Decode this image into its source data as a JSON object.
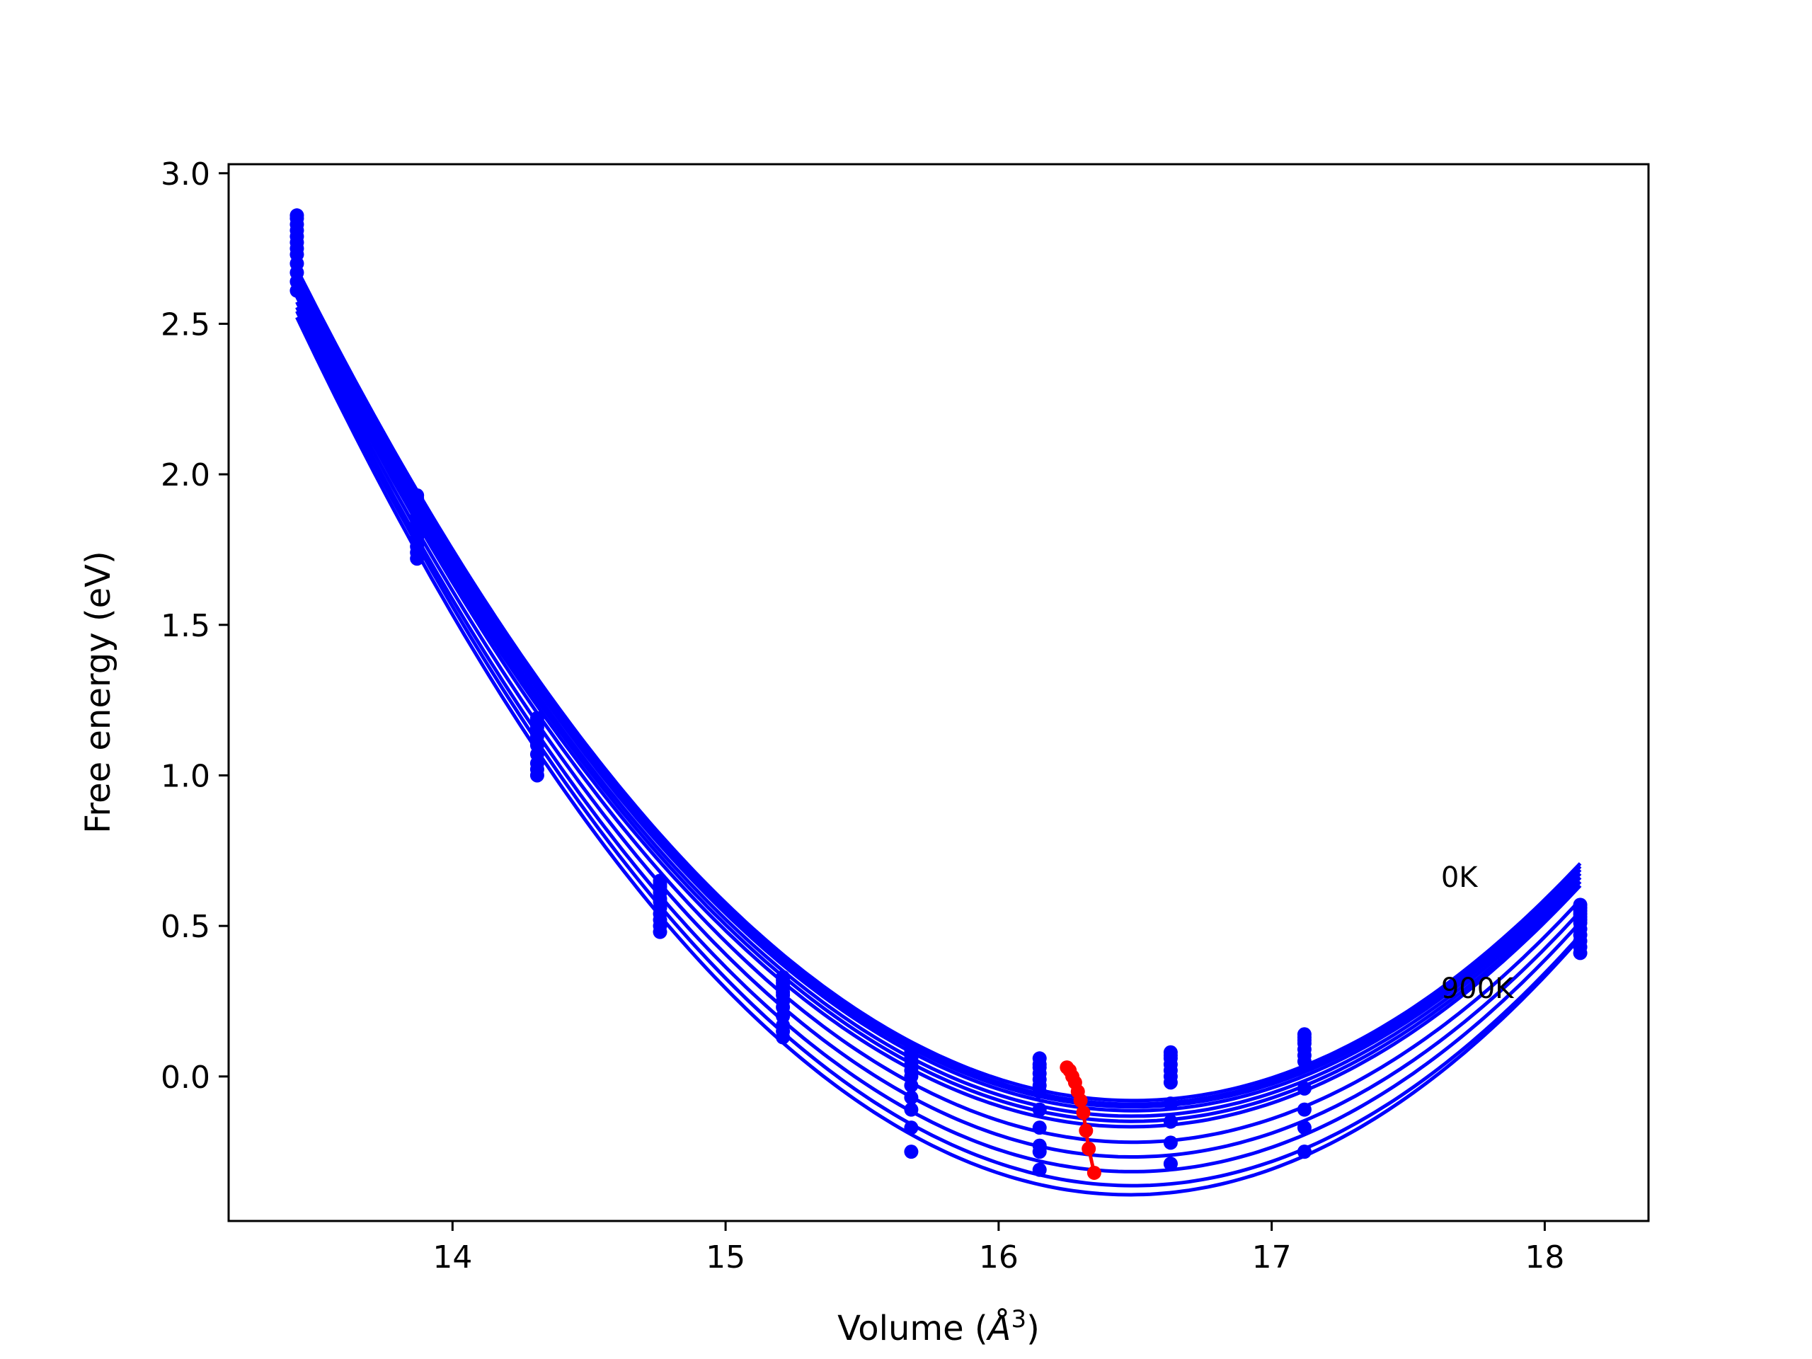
{
  "chart_data": {
    "type": "line",
    "title": "",
    "xlabel": "Volume (Å³)",
    "xlabel_parts": {
      "pre": "Volume (",
      "italic": "Å",
      "sup": "3",
      "post": ")"
    },
    "ylabel": "Free energy (eV)",
    "xlim": [
      13.18,
      18.38
    ],
    "ylim": [
      -0.48,
      3.03
    ],
    "xticks": [
      14,
      15,
      16,
      17,
      18
    ],
    "xtick_labels": [
      "14",
      "15",
      "16",
      "17",
      "18"
    ],
    "yticks": [
      0.0,
      0.5,
      1.0,
      1.5,
      2.0,
      2.5,
      3.0
    ],
    "ytick_labels": [
      "0.0",
      "0.5",
      "1.0",
      "1.5",
      "2.0",
      "2.5",
      "3.0"
    ],
    "grid": false,
    "legend": "none",
    "colors": {
      "curves": "#0000ff",
      "minima": "#ff0000",
      "axes": "#000000"
    },
    "annotations": [
      {
        "text": "0K",
        "x": 17.62,
        "y": 0.63
      },
      {
        "text": "900K",
        "x": 17.62,
        "y": 0.26
      }
    ],
    "volumes": [
      13.43,
      13.87,
      14.31,
      14.76,
      15.21,
      15.68,
      16.15,
      16.63,
      17.12,
      18.13
    ],
    "series": [
      {
        "values": [
          2.86,
          1.93,
          1.19,
          0.65,
          0.33,
          0.09,
          0.06,
          0.08,
          0.14,
          0.57
        ]
      },
      {
        "values": [
          2.85,
          1.92,
          1.18,
          0.64,
          0.32,
          0.08,
          0.04,
          0.07,
          0.13,
          0.56
        ]
      },
      {
        "values": [
          2.83,
          1.91,
          1.17,
          0.63,
          0.31,
          0.07,
          0.03,
          0.06,
          0.12,
          0.55
        ]
      },
      {
        "values": [
          2.81,
          1.9,
          1.16,
          0.62,
          0.3,
          0.06,
          0.01,
          0.04,
          0.11,
          0.54
        ]
      },
      {
        "values": [
          2.79,
          1.88,
          1.14,
          0.61,
          0.28,
          0.04,
          -0.01,
          0.02,
          0.09,
          0.53
        ]
      },
      {
        "values": [
          2.77,
          1.86,
          1.13,
          0.59,
          0.27,
          0.02,
          -0.03,
          0.0,
          0.07,
          0.52
        ]
      },
      {
        "values": [
          2.75,
          1.84,
          1.11,
          0.58,
          0.25,
          0.0,
          -0.05,
          -0.02,
          0.05,
          0.51
        ]
      },
      {
        "values": [
          2.73,
          1.82,
          1.1,
          0.56,
          0.23,
          -0.03,
          -0.11,
          -0.09,
          -0.04,
          0.49
        ]
      },
      {
        "values": [
          2.7,
          1.79,
          1.07,
          0.54,
          0.2,
          -0.07,
          -0.17,
          -0.15,
          -0.11,
          0.47
        ]
      },
      {
        "values": [
          2.67,
          1.76,
          1.04,
          0.52,
          0.17,
          -0.11,
          -0.23,
          -0.22,
          -0.17,
          0.45
        ]
      },
      {
        "values": [
          2.64,
          1.74,
          1.02,
          0.5,
          0.15,
          -0.17,
          -0.25,
          -0.29,
          -0.25,
          0.43
        ]
      },
      {
        "values": [
          2.61,
          1.72,
          1.0,
          0.48,
          0.13,
          -0.25,
          -0.31,
          -0.29,
          -0.25,
          0.41
        ]
      }
    ],
    "minima": {
      "x": [
        16.25,
        16.26,
        16.27,
        16.28,
        16.29,
        16.3,
        16.31,
        16.32,
        16.33,
        16.35
      ],
      "y": [
        0.03,
        0.02,
        0.0,
        -0.02,
        -0.05,
        -0.08,
        -0.12,
        -0.18,
        -0.24,
        -0.32
      ]
    }
  }
}
